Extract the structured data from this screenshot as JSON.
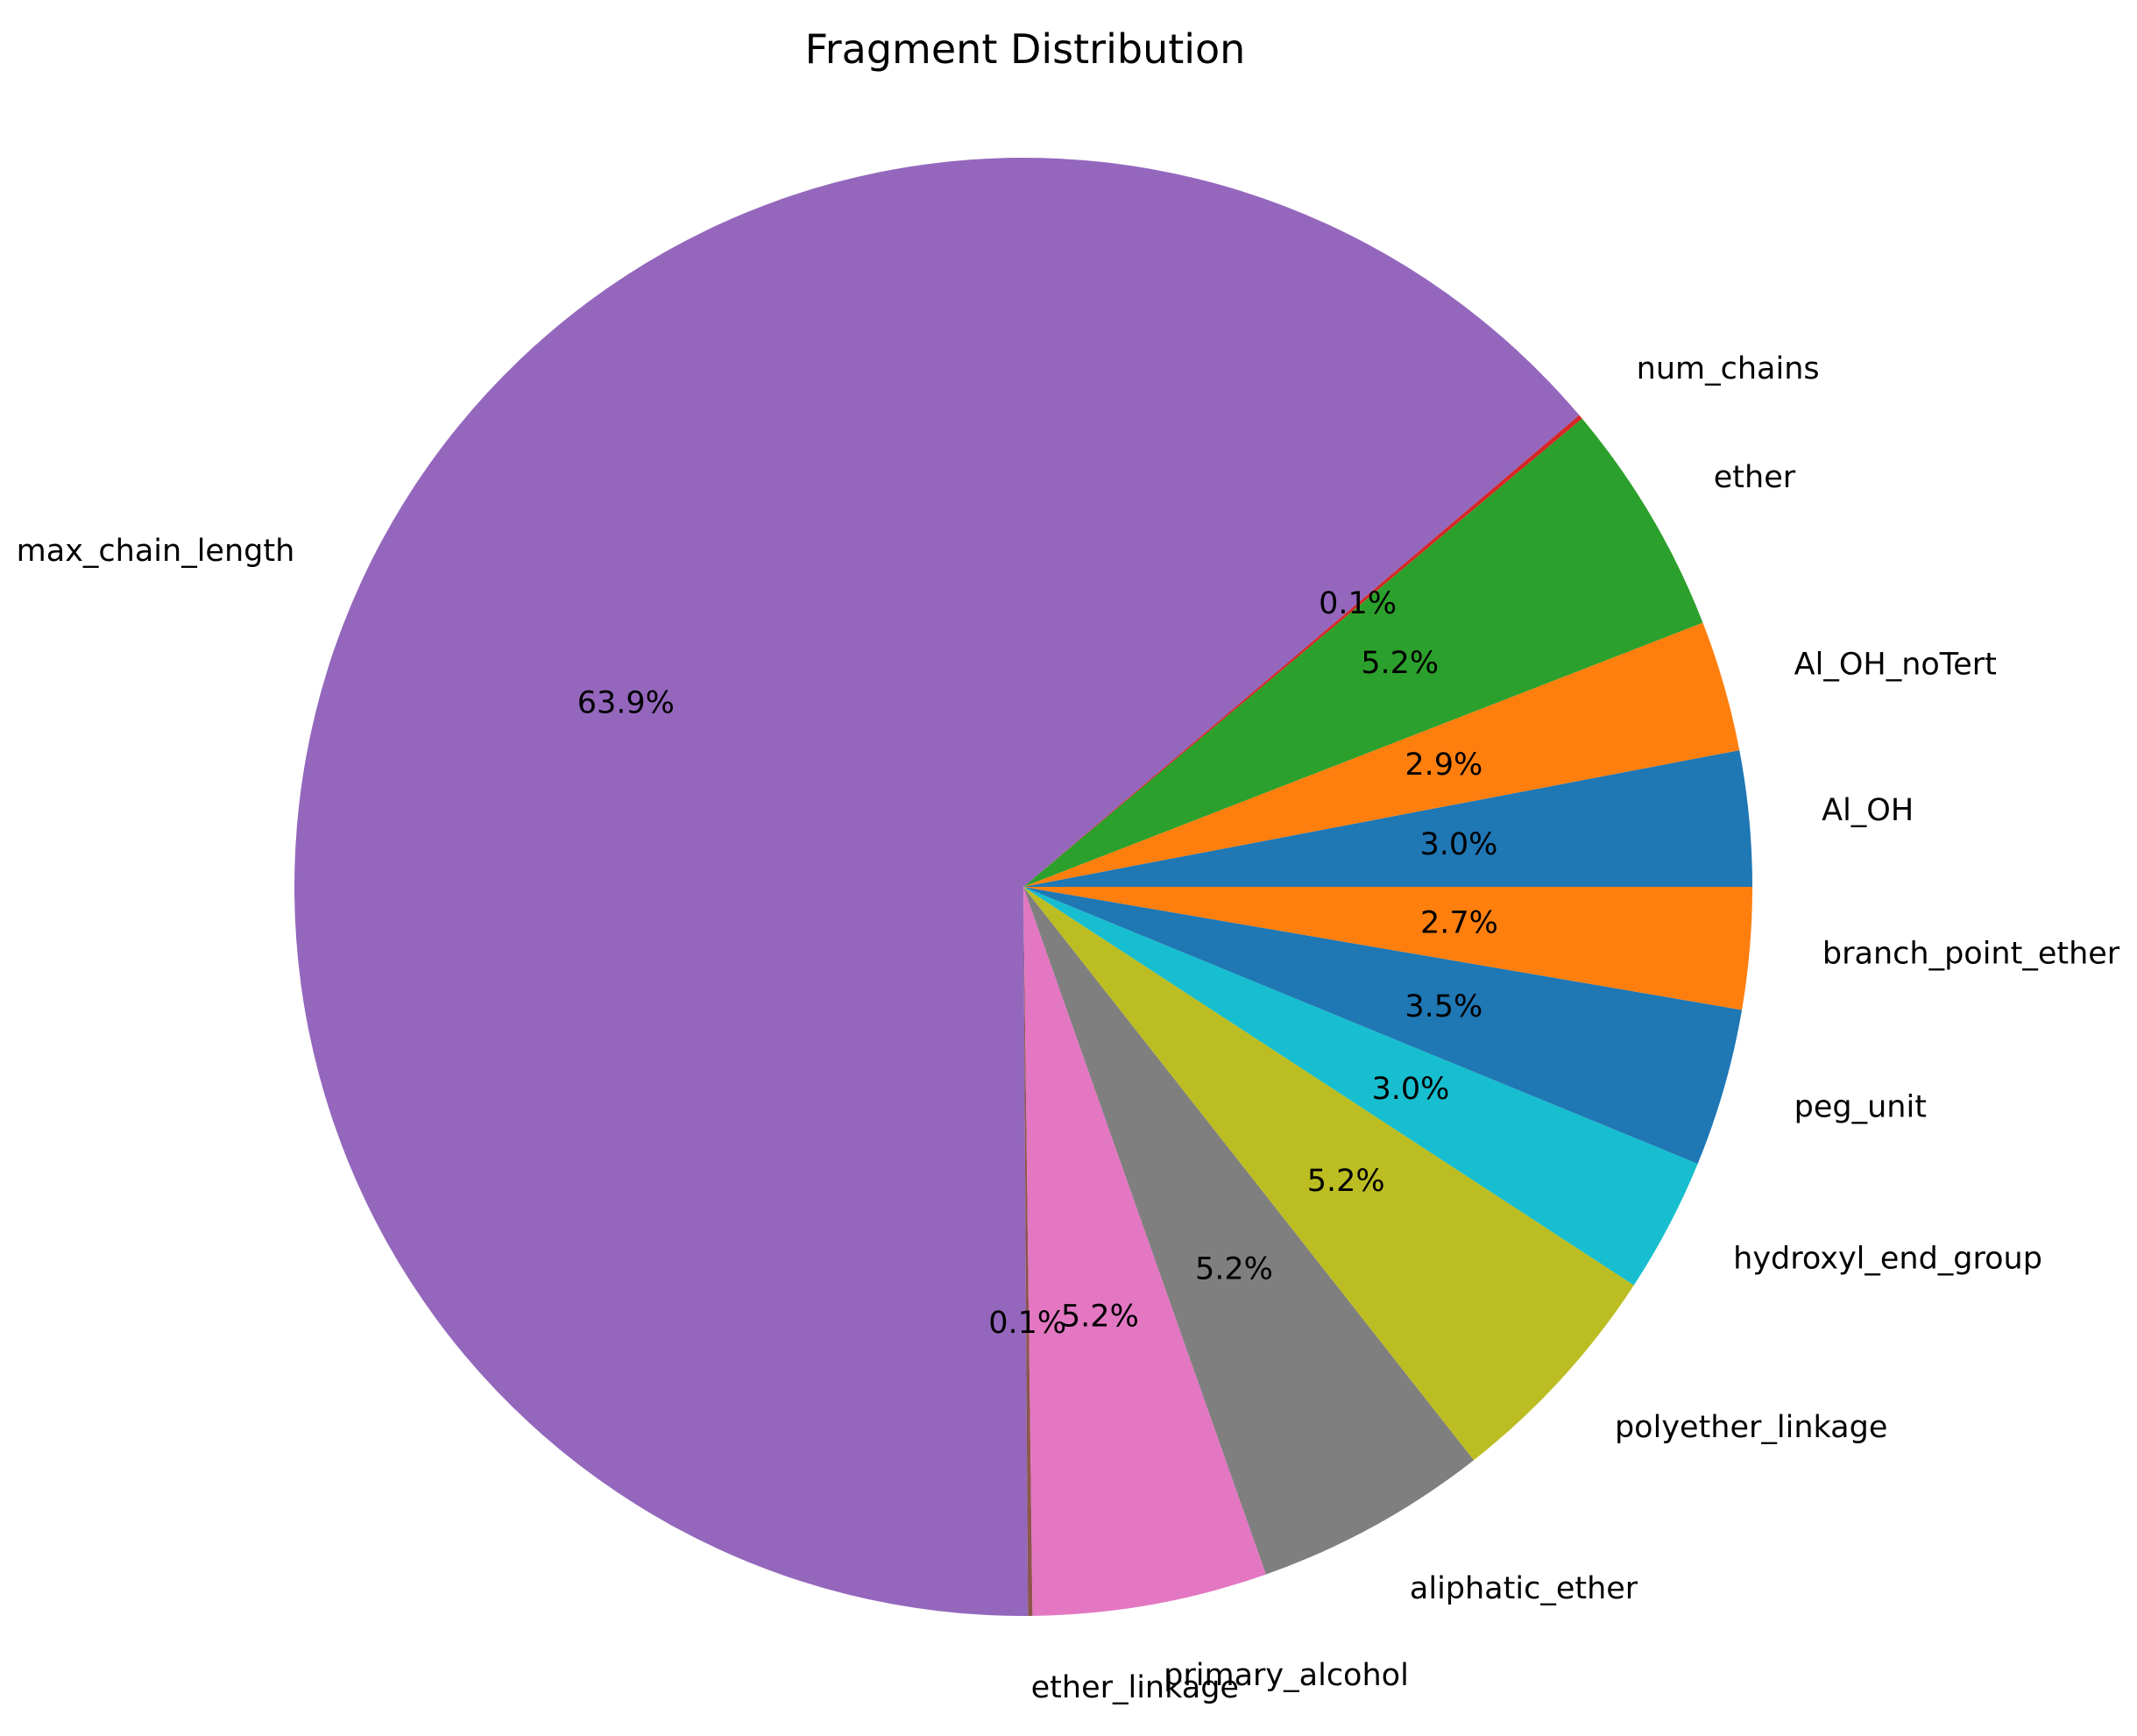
{
  "chart_data": {
    "type": "pie",
    "title": "Fragment Distribution",
    "start_angle": 0,
    "direction": "counterclockwise",
    "slices": [
      {
        "label": "Al_OH",
        "value": 3.0,
        "pct_label": "3.0%",
        "color": "#1f77b4"
      },
      {
        "label": "Al_OH_noTert",
        "value": 2.9,
        "pct_label": "2.9%",
        "color": "#ff7f0e"
      },
      {
        "label": "ether",
        "value": 5.2,
        "pct_label": "5.2%",
        "color": "#2ca02c"
      },
      {
        "label": "num_chains",
        "value": 0.1,
        "pct_label": "0.1%",
        "color": "#d62728"
      },
      {
        "label": "max_chain_length",
        "value": 63.9,
        "pct_label": "63.9%",
        "color": "#9467bd"
      },
      {
        "label": "ether_linkage",
        "value": 0.1,
        "pct_label": "0.1%",
        "color": "#8c564b"
      },
      {
        "label": "primary_alcohol",
        "value": 5.2,
        "pct_label": "5.2%",
        "color": "#e377c2"
      },
      {
        "label": "aliphatic_ether",
        "value": 5.2,
        "pct_label": "5.2%",
        "color": "#7f7f7f"
      },
      {
        "label": "polyether_linkage",
        "value": 5.2,
        "pct_label": "5.2%",
        "color": "#bcbd22"
      },
      {
        "label": "hydroxyl_end_group",
        "value": 3.0,
        "pct_label": "3.0%",
        "color": "#17becf"
      },
      {
        "label": "peg_unit",
        "value": 3.5,
        "pct_label": "3.5%",
        "color": "#1f77b4"
      },
      {
        "label": "branch_point_ether",
        "value": 2.7,
        "pct_label": "2.7%",
        "color": "#ff7f0e"
      }
    ]
  }
}
